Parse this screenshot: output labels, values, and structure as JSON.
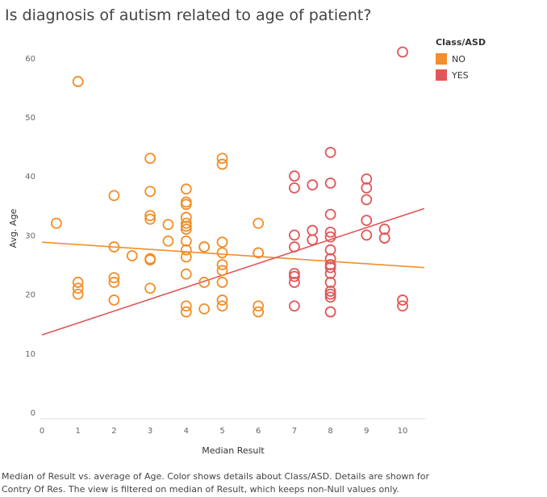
{
  "chart_data": {
    "type": "scatter",
    "title": "Is diagnosis of autism related to age of patient?",
    "xlabel": "Median Result",
    "ylabel": "Avg. Age",
    "xlim": [
      0,
      10.6
    ],
    "ylim": [
      0,
      64
    ],
    "x_ticks": [
      "0",
      "1",
      "2",
      "3",
      "4",
      "5",
      "6",
      "7",
      "8",
      "9",
      "10"
    ],
    "y_ticks": [
      "0",
      "10",
      "20",
      "30",
      "40",
      "50",
      "60"
    ],
    "grid": false,
    "legend_title": "Class/ASD",
    "legend_position": "top-right",
    "series": [
      {
        "name": "NO",
        "color": "#f28e2b",
        "points": [
          [
            0.4,
            32
          ],
          [
            1,
            56
          ],
          [
            1,
            22
          ],
          [
            1,
            21
          ],
          [
            1,
            20
          ],
          [
            2,
            36.7
          ],
          [
            2,
            28
          ],
          [
            2,
            22.8
          ],
          [
            2,
            22
          ],
          [
            2,
            19
          ],
          [
            2.5,
            26.5
          ],
          [
            3,
            43
          ],
          [
            3,
            37.4
          ],
          [
            3,
            33.3
          ],
          [
            3,
            32.7
          ],
          [
            3,
            26
          ],
          [
            3,
            25.8
          ],
          [
            3,
            21
          ],
          [
            3.5,
            29
          ],
          [
            3.5,
            31.8
          ],
          [
            4,
            37.8
          ],
          [
            4,
            35.6
          ],
          [
            4,
            35.2
          ],
          [
            4,
            33
          ],
          [
            4,
            32
          ],
          [
            4,
            31.5
          ],
          [
            4,
            31
          ],
          [
            4,
            29
          ],
          [
            4,
            27.5
          ],
          [
            4,
            26.3
          ],
          [
            4,
            23.4
          ],
          [
            4,
            18
          ],
          [
            4,
            17
          ],
          [
            4.5,
            28
          ],
          [
            4.5,
            28
          ],
          [
            4.5,
            22
          ],
          [
            4.5,
            17.5
          ],
          [
            5,
            43
          ],
          [
            5,
            42
          ],
          [
            5,
            28.8
          ],
          [
            5,
            27
          ],
          [
            5,
            25
          ],
          [
            5,
            24
          ],
          [
            5,
            22
          ],
          [
            5,
            19
          ],
          [
            5,
            18
          ],
          [
            6,
            32
          ],
          [
            6,
            27
          ],
          [
            6,
            27
          ],
          [
            6,
            18
          ],
          [
            6,
            17
          ]
        ],
        "trend": [
          [
            0,
            28.8
          ],
          [
            10.6,
            24.5
          ]
        ]
      },
      {
        "name": "YES",
        "color": "#e15759",
        "points": [
          [
            7,
            40
          ],
          [
            7,
            38
          ],
          [
            7,
            30
          ],
          [
            7,
            28
          ],
          [
            7,
            23.5
          ],
          [
            7,
            23
          ],
          [
            7,
            22
          ],
          [
            7,
            18
          ],
          [
            7.5,
            38.5
          ],
          [
            7.5,
            30.8
          ],
          [
            7.5,
            29.2
          ],
          [
            8,
            44
          ],
          [
            8,
            38.8
          ],
          [
            8,
            33.5
          ],
          [
            8,
            30.5
          ],
          [
            8,
            29.7
          ],
          [
            8,
            27.5
          ],
          [
            8,
            26
          ],
          [
            8,
            25
          ],
          [
            8,
            24.5
          ],
          [
            8,
            23.5
          ],
          [
            8,
            22
          ],
          [
            8,
            20.5
          ],
          [
            8,
            20
          ],
          [
            8,
            19.5
          ],
          [
            8,
            17
          ],
          [
            9,
            39.5
          ],
          [
            9,
            38
          ],
          [
            9,
            36
          ],
          [
            9,
            32.5
          ],
          [
            9,
            30
          ],
          [
            9.5,
            31
          ],
          [
            9.5,
            29.5
          ],
          [
            10,
            61
          ],
          [
            10,
            19
          ],
          [
            10,
            18
          ]
        ],
        "trend": [
          [
            0,
            13.1
          ],
          [
            10.6,
            34.5
          ]
        ]
      }
    ]
  },
  "caption": "Median of Result vs. average of Age.  Color shows details about Class/ASD.  Details are shown for Contry Of Res. The view is filtered on median of Result, which keeps non-Null values only."
}
